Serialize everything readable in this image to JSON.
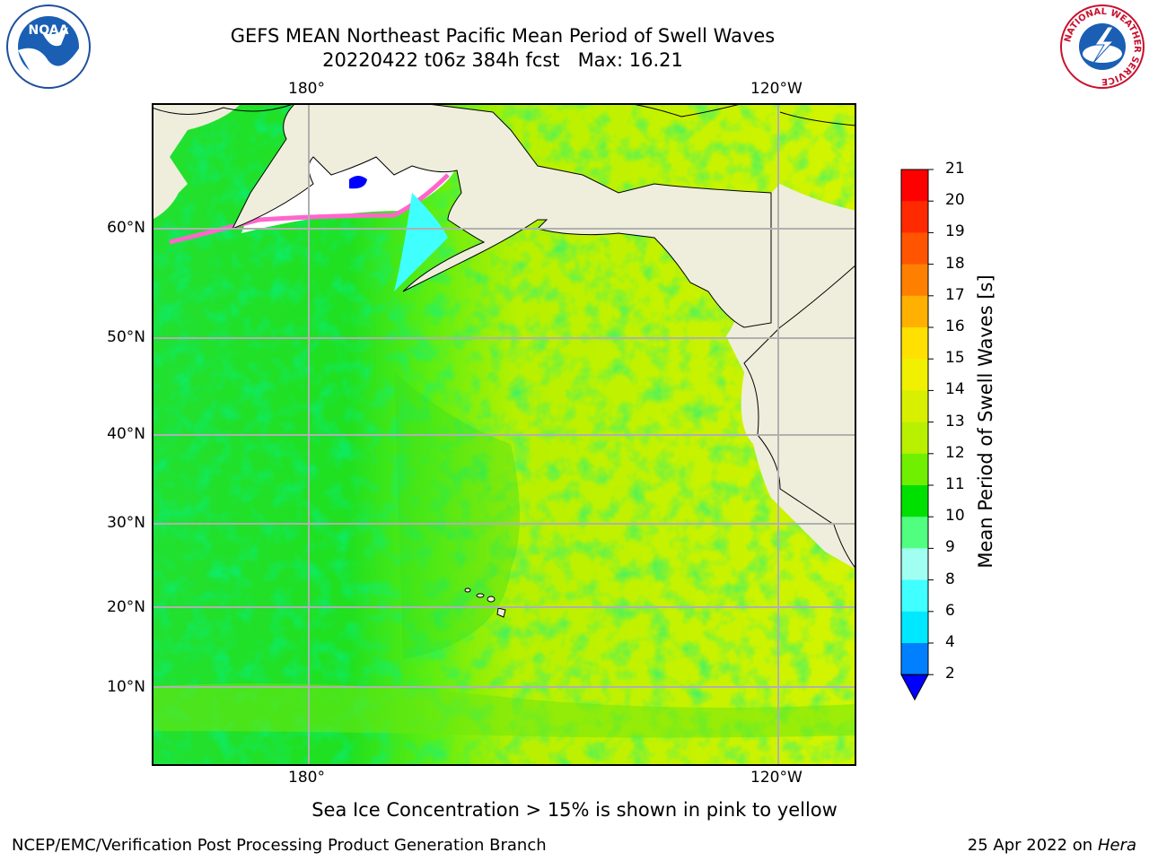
{
  "title": {
    "line1": "GEFS MEAN Northeast Pacific Mean Period of Swell Waves",
    "line2": "20220422 t06z 384h fcst   Max: 16.21"
  },
  "map": {
    "top_lon_labels": [
      "180°",
      "120°W"
    ],
    "bottom_lon_labels": [
      "180°",
      "120°W"
    ],
    "lat_labels": [
      "60°N",
      "50°N",
      "40°N",
      "30°N",
      "20°N",
      "10°N"
    ],
    "colors": {
      "land": "#efeedc",
      "ice": "#ffffff",
      "gridline": "#b0b0b0",
      "coast": "#000000"
    }
  },
  "colorbar": {
    "label": "Mean Period of Swell Waves [s]",
    "ticks": [
      "21",
      "20",
      "19",
      "18",
      "17",
      "16",
      "15",
      "14",
      "13",
      "12",
      "11",
      "10",
      "9",
      "8",
      "6",
      "4",
      "2"
    ],
    "colors": [
      "#ff0000",
      "#ff2a00",
      "#ff5500",
      "#ff8000",
      "#ffb000",
      "#ffe000",
      "#f0f000",
      "#d8f000",
      "#b8f000",
      "#70f000",
      "#00e000",
      "#50ff80",
      "#a0fff0",
      "#40ffff",
      "#00e8ff",
      "#0080ff"
    ],
    "extend_color": "#0000ff"
  },
  "footer": {
    "note": "Sea Ice Concentration > 15% is shown in pink to yellow",
    "credit_left": "NCEP/EMC/Verification Post Processing Product Generation Branch",
    "credit_right_prefix": "25 Apr 2022 on ",
    "credit_right_host": "Hera"
  },
  "logos": {
    "noaa_text": "NOAA",
    "nws_ring": "NATIONAL WEATHER SERVICE"
  }
}
